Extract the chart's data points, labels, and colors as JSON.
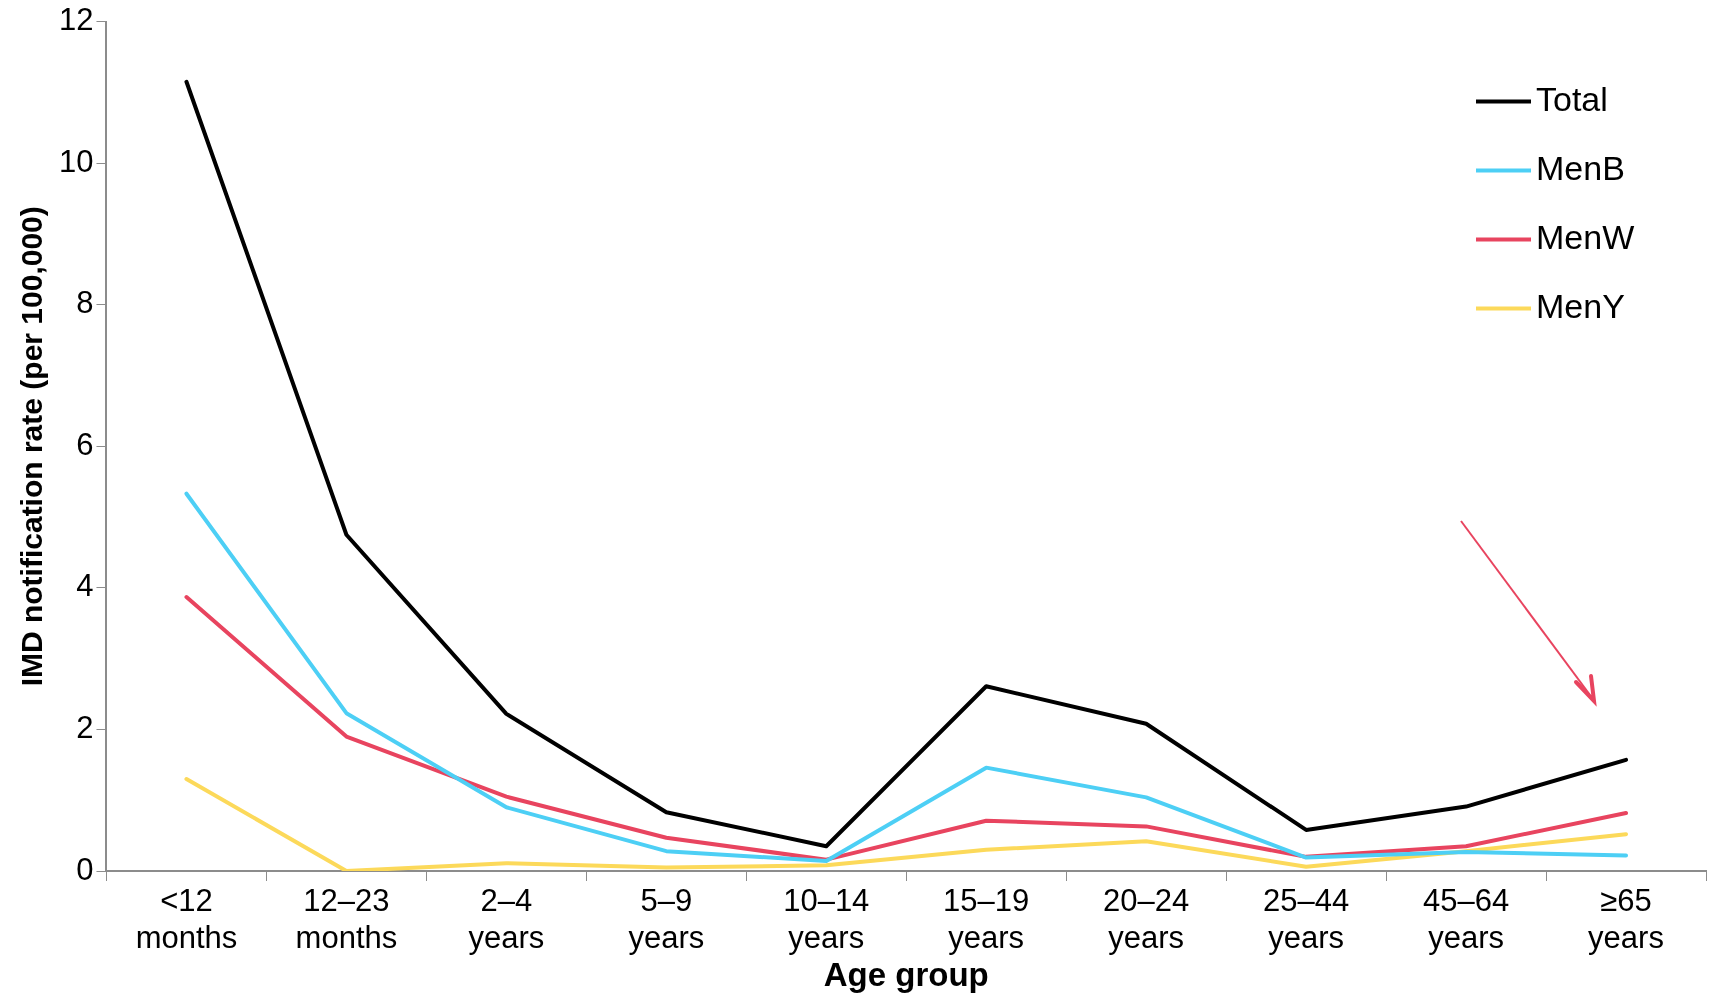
{
  "chart_data": {
    "type": "line",
    "xlabel": "Age group",
    "ylabel": "IMD notification rate (per 100,000)",
    "categories": [
      "<12 months",
      "12–23 months",
      "2–4 years",
      "5–9 years",
      "10–14 years",
      "15–19 years",
      "20–24 years",
      "25–44 years",
      "45–64 years",
      "≥65 years"
    ],
    "series": [
      {
        "name": "Total",
        "color": "#000000",
        "values": [
          11.15,
          4.75,
          2.22,
          0.83,
          0.35,
          2.61,
          2.08,
          0.58,
          0.91,
          1.57
        ]
      },
      {
        "name": "MenB",
        "color": "#4dcff5",
        "values": [
          5.33,
          2.23,
          0.9,
          0.28,
          0.14,
          1.46,
          1.04,
          0.19,
          0.27,
          0.22
        ]
      },
      {
        "name": "MenW",
        "color": "#e8445f",
        "values": [
          3.87,
          1.9,
          1.05,
          0.47,
          0.16,
          0.71,
          0.63,
          0.2,
          0.35,
          0.82
        ]
      },
      {
        "name": "MenY",
        "color": "#fcd95a",
        "values": [
          1.3,
          0,
          0.11,
          0.05,
          0.08,
          0.3,
          0.42,
          0.06,
          0.28,
          0.52
        ]
      }
    ],
    "ylim": [
      0,
      12
    ],
    "yticks": [
      0,
      2,
      4,
      6,
      8,
      10,
      12
    ],
    "grid": false,
    "legend": "top right",
    "marker": "none",
    "line_style": "solid"
  }
}
